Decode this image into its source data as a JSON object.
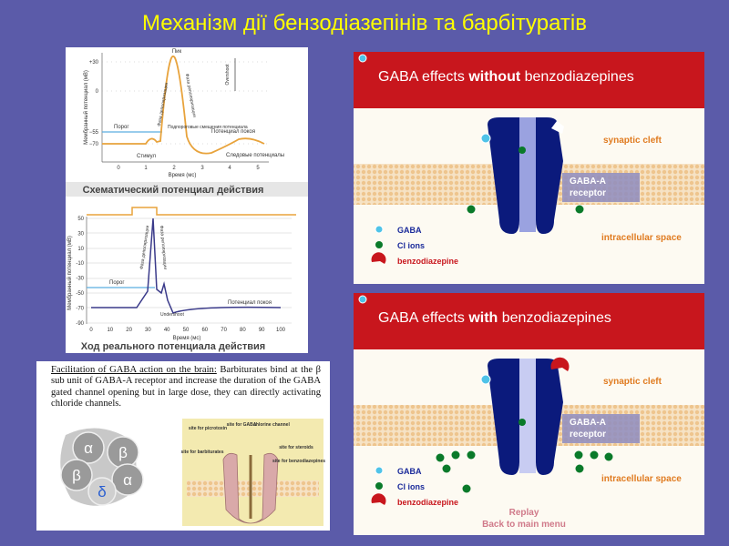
{
  "title": "Механізм дії бензодіазепінів та барбітуратів",
  "schematic_potential": {
    "y_axis_label": "Мембранный потенциал (мВ)",
    "y_ticks": [
      "+30",
      "0",
      "−55",
      "−70"
    ],
    "x_ticks": [
      "0",
      "1",
      "2",
      "3",
      "4",
      "5"
    ],
    "x_axis_label": "Время (мс)",
    "peak": "Пик",
    "depolarization": "Фаза деполяризации",
    "repolarization": "Фаза реполяризации",
    "overshoot": "Overshoot",
    "threshold": "Порог",
    "subthreshold": "Подпороговые смещения потенциала",
    "resting": "Потенциал покоя",
    "stimulus": "Стимул",
    "trace": "Следовые потенциалы",
    "caption": "Схематический потенциал действия"
  },
  "real_potential": {
    "y_axis_label": "Мембранный потенциал (мВ)",
    "y_ticks": [
      "50",
      "30",
      "10",
      "-10",
      "-30",
      "-50",
      "-70",
      "-90"
    ],
    "x_ticks": [
      "0",
      "10",
      "20",
      "30",
      "40",
      "50",
      "60",
      "70",
      "80",
      "90",
      "100"
    ],
    "x_axis_label": "Время (мс)",
    "threshold": "Порог",
    "depolarization": "Фаза деполяризации",
    "repolarization": "Фаза реполяризации",
    "undershoot": "Undershoot",
    "resting": "Потенциал покоя",
    "caption": "Ход реального потенциала действия"
  },
  "barbiturates": {
    "lead": "Facilitation of GABA action on the brain:",
    "text": " Barbiturates bind at the β sub unit of GABA-A receptor and increase the duration of the GABA gated channel opening but in large dose, they can directly activating chloride channels.",
    "subunits": [
      "α",
      "β",
      "α",
      "δ",
      "β"
    ],
    "sites": [
      "site for picrotoxin",
      "site for GABA",
      "chlorine channel",
      "site for barbiturates",
      "site for steroids",
      "site for benzodiazepines"
    ]
  },
  "panel_without": {
    "title_parts": [
      "GABA effects ",
      "without",
      " benzodiazepines"
    ],
    "synaptic_cleft": "synaptic cleft",
    "receptor": [
      "GABA-A",
      "receptor"
    ],
    "intracellular": "intracellular space",
    "legend": [
      "GABA",
      "Cl ions",
      "benzodiazepine"
    ]
  },
  "panel_with": {
    "title_parts": [
      "GABA effects ",
      "with",
      " benzodiazepines"
    ],
    "synaptic_cleft": "synaptic cleft",
    "receptor": [
      "GABA-A",
      "receptor"
    ],
    "intracellular": "intracellular space",
    "legend": [
      "GABA",
      "Cl ions",
      "benzodiazepine"
    ],
    "replay": "Replay",
    "menu": "Back to main menu"
  }
}
